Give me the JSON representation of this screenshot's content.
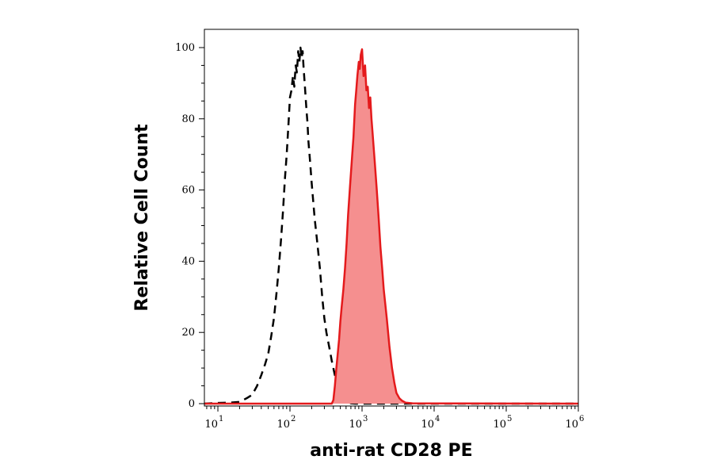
{
  "chart_data": {
    "type": "area",
    "xlabel": "anti-rat CD28 PE",
    "ylabel": "Relative Cell Count",
    "x_scale": "log",
    "xlim": [
      6.5,
      1000000
    ],
    "ylim": [
      0,
      100
    ],
    "x_ticks": [
      {
        "value": 10,
        "base": "10",
        "exp": "1"
      },
      {
        "value": 100,
        "base": "10",
        "exp": "2"
      },
      {
        "value": 1000,
        "base": "10",
        "exp": "3"
      },
      {
        "value": 10000,
        "base": "10",
        "exp": "4"
      },
      {
        "value": 100000,
        "base": "10",
        "exp": "5"
      },
      {
        "value": 1000000,
        "base": "10",
        "exp": "6"
      }
    ],
    "y_ticks": [
      "0",
      "20",
      "40",
      "60",
      "80",
      "100"
    ],
    "grid": false,
    "colors": {
      "stained_line": "#e41a1c",
      "stained_fill": "#f58f8f",
      "control_line": "#000000",
      "axes": "#000000"
    },
    "series": [
      {
        "style": "dashed-black",
        "x": [
          6.5,
          10,
          15,
          20,
          25,
          30,
          35,
          40,
          45,
          50,
          55,
          60,
          65,
          70,
          75,
          80,
          85,
          90,
          95,
          100,
          105,
          110,
          115,
          120,
          125,
          130,
          135,
          140,
          145,
          150,
          155,
          160,
          165,
          170,
          175,
          180,
          190,
          200,
          220,
          240,
          260,
          280,
          300,
          320,
          350,
          380,
          420,
          460,
          500,
          550,
          600,
          650,
          700,
          800,
          1000,
          1000000
        ],
        "y": [
          0,
          0.2,
          0.3,
          0.5,
          1.5,
          2.5,
          5,
          8,
          11,
          14,
          19,
          24,
          31,
          38,
          46,
          54,
          63,
          70,
          78,
          86,
          88,
          92,
          89,
          95,
          93,
          99,
          96,
          100,
          97,
          99,
          94,
          90,
          86,
          82,
          79,
          74,
          68,
          62,
          52,
          45,
          38,
          30,
          24,
          20,
          16,
          12,
          8,
          5,
          3,
          1.5,
          0.8,
          0.3,
          0.1,
          0,
          0,
          0
        ]
      },
      {
        "style": "filled-red",
        "x": [
          6.5,
          380,
          400,
          420,
          440,
          460,
          480,
          500,
          520,
          550,
          580,
          610,
          640,
          680,
          720,
          760,
          800,
          830,
          860,
          900,
          930,
          960,
          1000,
          1050,
          1100,
          1150,
          1200,
          1250,
          1300,
          1350,
          1400,
          1500,
          1600,
          1700,
          1800,
          1900,
          2000,
          2200,
          2400,
          2600,
          2800,
          3000,
          3300,
          3600,
          4000,
          5000,
          1000000
        ],
        "y": [
          0,
          0,
          1,
          5,
          10,
          14,
          18,
          23,
          27,
          32,
          38,
          45,
          53,
          61,
          68,
          75,
          84,
          88,
          92,
          96,
          94,
          98,
          99.5,
          92,
          95,
          88,
          89,
          83,
          86,
          80,
          76,
          68,
          60,
          52,
          44,
          38,
          32,
          24,
          16,
          10,
          6,
          3,
          1.5,
          0.8,
          0.3,
          0.1,
          0
        ]
      }
    ]
  }
}
